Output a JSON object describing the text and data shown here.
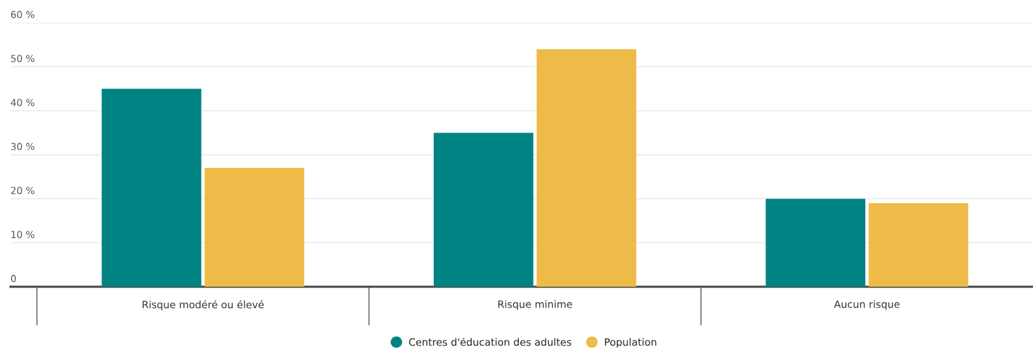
{
  "chart_data": {
    "type": "bar",
    "categories": [
      "Risque modéré ou élevé",
      "Risque minime",
      "Aucun risque"
    ],
    "series": [
      {
        "name": "Centres d'éducation des adultes",
        "color": "#008483",
        "values": [
          45,
          35,
          20
        ]
      },
      {
        "name": "Population",
        "color": "#eeba48",
        "values": [
          27,
          54,
          19
        ]
      }
    ],
    "ylim": [
      0,
      60
    ],
    "yticks": [
      {
        "value": 0,
        "label": "0"
      },
      {
        "value": 10,
        "label": "10 %"
      },
      {
        "value": 20,
        "label": "20 %"
      },
      {
        "value": 30,
        "label": "30 %"
      },
      {
        "value": 40,
        "label": "40 %"
      },
      {
        "value": 50,
        "label": "50 %"
      },
      {
        "value": 60,
        "label": "60 %"
      }
    ],
    "grid": "y",
    "legend": "bottom"
  }
}
